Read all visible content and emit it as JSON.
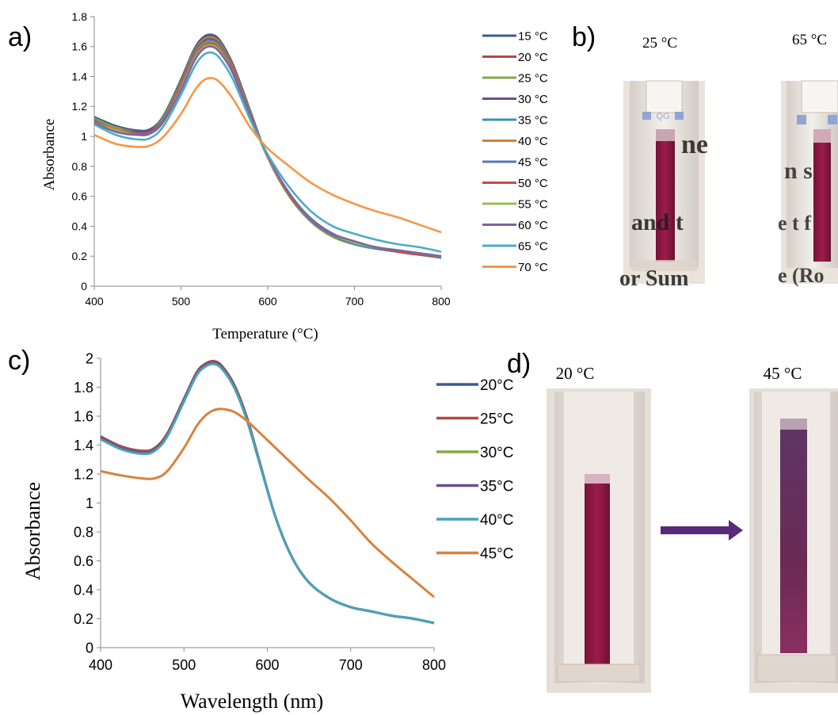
{
  "panel_labels": {
    "a": "a)",
    "b": "b)",
    "c": "c)",
    "d": "d)"
  },
  "chart_data": [
    {
      "id": "a",
      "type": "line",
      "title": "",
      "xlabel": "Temperature (°C)",
      "ylabel": "Absorbance",
      "xlim": [
        400,
        800
      ],
      "ylim": [
        0,
        1.8
      ],
      "xticks": [
        "400",
        "500",
        "600",
        "700",
        "800"
      ],
      "yticks": [
        "0",
        "0.2",
        "0.4",
        "0.6",
        "0.8",
        "1",
        "1.2",
        "1.4",
        "1.6",
        "1.8"
      ],
      "legend_position": "right",
      "x": [
        400,
        425,
        450,
        465,
        480,
        500,
        515,
        525,
        535,
        545,
        560,
        580,
        600,
        625,
        650,
        675,
        700,
        725,
        750,
        775,
        800
      ],
      "series": [
        {
          "name": "15 °C",
          "color": "#3a5c8f",
          "values": [
            1.13,
            1.07,
            1.04,
            1.05,
            1.14,
            1.38,
            1.58,
            1.66,
            1.68,
            1.64,
            1.48,
            1.17,
            0.86,
            0.6,
            0.43,
            0.33,
            0.28,
            0.25,
            0.23,
            0.21,
            0.19
          ]
        },
        {
          "name": "20 °C",
          "color": "#b04a46",
          "values": [
            1.12,
            1.06,
            1.03,
            1.04,
            1.13,
            1.37,
            1.57,
            1.65,
            1.67,
            1.63,
            1.47,
            1.16,
            0.86,
            0.6,
            0.43,
            0.33,
            0.28,
            0.25,
            0.23,
            0.21,
            0.19
          ]
        },
        {
          "name": "25 °C",
          "color": "#86a843",
          "values": [
            1.12,
            1.06,
            1.03,
            1.04,
            1.13,
            1.36,
            1.56,
            1.64,
            1.66,
            1.62,
            1.46,
            1.16,
            0.86,
            0.6,
            0.43,
            0.33,
            0.28,
            0.25,
            0.23,
            0.21,
            0.19
          ]
        },
        {
          "name": "30 °C",
          "color": "#6b4f8c",
          "values": [
            1.11,
            1.05,
            1.03,
            1.04,
            1.12,
            1.35,
            1.55,
            1.63,
            1.65,
            1.61,
            1.45,
            1.15,
            0.86,
            0.61,
            0.44,
            0.34,
            0.28,
            0.25,
            0.23,
            0.21,
            0.19
          ]
        },
        {
          "name": "35 °C",
          "color": "#3a94a8",
          "values": [
            1.11,
            1.05,
            1.02,
            1.03,
            1.12,
            1.34,
            1.54,
            1.62,
            1.64,
            1.6,
            1.44,
            1.15,
            0.86,
            0.61,
            0.44,
            0.34,
            0.28,
            0.25,
            0.23,
            0.21,
            0.19
          ]
        },
        {
          "name": "40 °C",
          "color": "#d0813a",
          "values": [
            1.1,
            1.05,
            1.02,
            1.03,
            1.11,
            1.34,
            1.53,
            1.61,
            1.63,
            1.59,
            1.44,
            1.14,
            0.86,
            0.61,
            0.44,
            0.34,
            0.29,
            0.26,
            0.23,
            0.21,
            0.2
          ]
        },
        {
          "name": "45 °C",
          "color": "#5579b5",
          "values": [
            1.1,
            1.04,
            1.02,
            1.03,
            1.11,
            1.33,
            1.52,
            1.6,
            1.62,
            1.58,
            1.43,
            1.14,
            0.86,
            0.61,
            0.44,
            0.34,
            0.29,
            0.26,
            0.23,
            0.21,
            0.2
          ]
        },
        {
          "name": "50 °C",
          "color": "#c04d4a",
          "values": [
            1.1,
            1.04,
            1.02,
            1.03,
            1.11,
            1.33,
            1.52,
            1.6,
            1.62,
            1.58,
            1.43,
            1.14,
            0.86,
            0.61,
            0.45,
            0.35,
            0.29,
            0.26,
            0.23,
            0.21,
            0.2
          ]
        },
        {
          "name": "55 °C",
          "color": "#9bbb59",
          "values": [
            1.09,
            1.04,
            1.01,
            1.02,
            1.1,
            1.32,
            1.51,
            1.59,
            1.61,
            1.57,
            1.42,
            1.13,
            0.86,
            0.62,
            0.45,
            0.35,
            0.29,
            0.26,
            0.24,
            0.22,
            0.2
          ]
        },
        {
          "name": "60 °C",
          "color": "#8064a2",
          "values": [
            1.09,
            1.03,
            1.01,
            1.02,
            1.1,
            1.31,
            1.5,
            1.58,
            1.6,
            1.56,
            1.42,
            1.13,
            0.87,
            0.62,
            0.45,
            0.35,
            0.3,
            0.26,
            0.24,
            0.22,
            0.2
          ]
        },
        {
          "name": "65 °C",
          "color": "#4bacc6",
          "values": [
            1.08,
            1.01,
            0.98,
            0.99,
            1.07,
            1.28,
            1.46,
            1.54,
            1.56,
            1.52,
            1.38,
            1.11,
            0.88,
            0.66,
            0.5,
            0.4,
            0.35,
            0.31,
            0.28,
            0.26,
            0.23
          ]
        },
        {
          "name": "70 °C",
          "color": "#f79646",
          "values": [
            1.01,
            0.95,
            0.93,
            0.94,
            1.0,
            1.15,
            1.3,
            1.37,
            1.39,
            1.36,
            1.25,
            1.06,
            0.92,
            0.8,
            0.69,
            0.61,
            0.55,
            0.5,
            0.46,
            0.41,
            0.36
          ]
        }
      ]
    },
    {
      "id": "c",
      "type": "line",
      "title": "",
      "xlabel": "Wavelength (nm)",
      "ylabel": "Absorbance",
      "xlim": [
        400,
        800
      ],
      "ylim": [
        0,
        2
      ],
      "xticks": [
        "400",
        "500",
        "600",
        "700",
        "800"
      ],
      "yticks": [
        "0",
        "0.2",
        "0.4",
        "0.6",
        "0.8",
        "1",
        "1.2",
        "1.4",
        "1.6",
        "1.8",
        "2"
      ],
      "legend_position": "right",
      "x": [
        400,
        425,
        450,
        465,
        480,
        500,
        515,
        525,
        535,
        545,
        560,
        575,
        590,
        610,
        630,
        650,
        675,
        700,
        725,
        750,
        775,
        800
      ],
      "series": [
        {
          "name": "20°C",
          "color": "#3a5c8f",
          "values": [
            1.46,
            1.39,
            1.36,
            1.38,
            1.48,
            1.72,
            1.9,
            1.96,
            1.98,
            1.95,
            1.82,
            1.6,
            1.3,
            0.9,
            0.62,
            0.45,
            0.34,
            0.28,
            0.25,
            0.22,
            0.2,
            0.17
          ]
        },
        {
          "name": "25°C",
          "color": "#b04a46",
          "values": [
            1.46,
            1.39,
            1.36,
            1.38,
            1.48,
            1.72,
            1.9,
            1.96,
            1.98,
            1.95,
            1.82,
            1.6,
            1.3,
            0.9,
            0.62,
            0.45,
            0.34,
            0.28,
            0.25,
            0.22,
            0.2,
            0.17
          ]
        },
        {
          "name": "30°C",
          "color": "#86a843",
          "values": [
            1.45,
            1.38,
            1.35,
            1.37,
            1.47,
            1.71,
            1.89,
            1.95,
            1.97,
            1.94,
            1.81,
            1.59,
            1.29,
            0.9,
            0.62,
            0.45,
            0.34,
            0.28,
            0.25,
            0.22,
            0.2,
            0.17
          ]
        },
        {
          "name": "35°C",
          "color": "#6b4f8c",
          "values": [
            1.45,
            1.38,
            1.35,
            1.37,
            1.47,
            1.71,
            1.89,
            1.95,
            1.97,
            1.94,
            1.81,
            1.59,
            1.29,
            0.9,
            0.62,
            0.45,
            0.34,
            0.28,
            0.25,
            0.22,
            0.2,
            0.17
          ]
        },
        {
          "name": "40°C",
          "color": "#4aa3b8",
          "values": [
            1.44,
            1.37,
            1.34,
            1.36,
            1.46,
            1.7,
            1.88,
            1.94,
            1.96,
            1.93,
            1.8,
            1.58,
            1.29,
            0.9,
            0.62,
            0.45,
            0.34,
            0.28,
            0.25,
            0.22,
            0.2,
            0.17
          ]
        },
        {
          "name": "45°C",
          "color": "#d9823c",
          "values": [
            1.22,
            1.19,
            1.17,
            1.17,
            1.22,
            1.38,
            1.53,
            1.6,
            1.64,
            1.65,
            1.63,
            1.57,
            1.49,
            1.38,
            1.27,
            1.16,
            1.03,
            0.88,
            0.72,
            0.59,
            0.47,
            0.35
          ]
        }
      ]
    }
  ],
  "photo_b": {
    "labels": [
      "25 °C",
      "65 °C"
    ]
  },
  "photo_d": {
    "labels": [
      "20 °C",
      "45 °C"
    ]
  }
}
